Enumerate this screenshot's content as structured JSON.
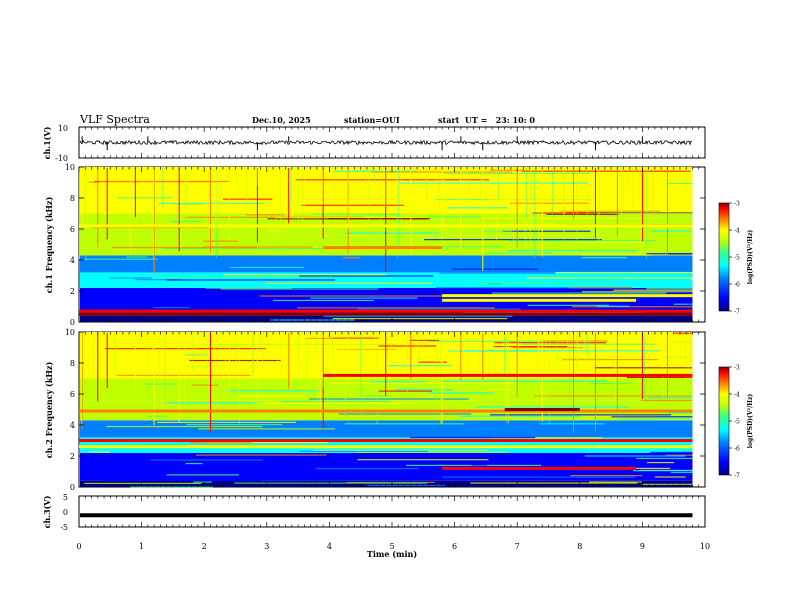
{
  "header": {
    "title": "VLF Spectra",
    "date": "Dec.10, 2025",
    "station": "station=OUI",
    "start": "start  UT =   23: 10: 0"
  },
  "colors": {
    "colormap": [
      "#000080",
      "#0000ff",
      "#0080ff",
      "#00ffff",
      "#40ff80",
      "#c0ff00",
      "#ffff00",
      "#ff8000",
      "#ff0000",
      "#800000"
    ],
    "trace": "#000000"
  },
  "chart_data": [
    {
      "type": "line",
      "name": "ch1-waveform",
      "ylabel": "ch.1(V)",
      "ylim": [
        -10,
        10
      ],
      "yticks": [
        "10",
        "-10"
      ],
      "x_range_min": [
        0,
        10
      ],
      "baseline": 0,
      "amplitude_approx": 1.2,
      "spikes_min": [
        0.05,
        0.45,
        1.1,
        2.85,
        3.35,
        5.8,
        6.1,
        6.45,
        7.0,
        8.25,
        9.0
      ]
    },
    {
      "type": "heatmap",
      "name": "ch1-spectrogram",
      "ylabel": "ch.1 Frequency (kHz)",
      "ylim": [
        0,
        10
      ],
      "yticks": [
        "0",
        "2",
        "4",
        "6",
        "8",
        "10"
      ],
      "x_range_min": [
        0,
        9.8
      ],
      "colorbar": {
        "label": "log(PSD)(V²/Hz)",
        "range": [
          -7,
          -3
        ],
        "ticks": [
          "-3",
          "-4",
          "-5",
          "-6",
          "-7"
        ]
      },
      "bands_khz": [
        {
          "f": 0.5,
          "level": -3.2,
          "t": [
            0,
            9.8
          ]
        },
        {
          "f": 0.7,
          "level": -3.8,
          "t": [
            0,
            9.8
          ]
        },
        {
          "f": 1.4,
          "level": -4.3,
          "t": [
            5.8,
            8.9
          ]
        },
        {
          "f": 1.7,
          "level": -4.4,
          "t": [
            5.8,
            9.8
          ]
        },
        {
          "f": 4.8,
          "level": -4.0,
          "t": [
            3.9,
            5.8
          ]
        },
        {
          "f": 6.2,
          "level": -4.5,
          "t": [
            0,
            9.8
          ]
        }
      ],
      "sferic_times_min": [
        0.05,
        0.3,
        0.45,
        0.9,
        1.2,
        1.6,
        2.1,
        2.4,
        2.85,
        3.35,
        3.9,
        4.3,
        4.9,
        5.3,
        5.8,
        6.1,
        6.45,
        7.0,
        7.4,
        7.9,
        8.25,
        8.6,
        9.0,
        9.4
      ]
    },
    {
      "type": "heatmap",
      "name": "ch2-spectrogram",
      "ylabel": "ch.2 Frequency (kHz)",
      "ylim": [
        0,
        10
      ],
      "yticks": [
        "0",
        "2",
        "4",
        "6",
        "8",
        "10"
      ],
      "x_range_min": [
        0,
        9.8
      ],
      "colorbar": {
        "label": "log(PSD)(V²/Hz)",
        "range": [
          -7,
          -3
        ],
        "ticks": [
          "-3",
          "-4",
          "-5",
          "-6",
          "-7"
        ]
      },
      "bands_khz": [
        {
          "f": 1.2,
          "level": -3.5,
          "t": [
            5.8,
            8.9
          ]
        },
        {
          "f": 2.6,
          "level": -4.5,
          "t": [
            0,
            9.8
          ]
        },
        {
          "f": 3.0,
          "level": -3.5,
          "t": [
            0,
            9.8
          ]
        },
        {
          "f": 4.9,
          "level": -4.2,
          "t": [
            0,
            9.8
          ]
        },
        {
          "f": 5.0,
          "level": -3.4,
          "t": [
            6.8,
            8.0
          ]
        },
        {
          "f": 7.2,
          "level": -3.8,
          "t": [
            3.9,
            9.8
          ]
        }
      ],
      "sferic_times_min": [
        0.05,
        0.3,
        0.45,
        0.9,
        1.2,
        1.6,
        2.1,
        2.4,
        2.85,
        3.35,
        3.9,
        4.3,
        4.9,
        5.3,
        5.8,
        6.1,
        6.45,
        7.0,
        7.4,
        7.9,
        8.25,
        8.6,
        9.0,
        9.4
      ]
    },
    {
      "type": "line",
      "name": "ch3-waveform",
      "ylabel": "ch.3(V)",
      "ylim": [
        -5,
        5
      ],
      "yticks": [
        "5",
        "0",
        "-5"
      ],
      "x_range_min": [
        0,
        9.8
      ],
      "baseline": 0,
      "amplitude_approx": 0.25
    }
  ],
  "xaxis": {
    "label": "Time (min)",
    "range": [
      0,
      10
    ],
    "ticks": [
      "0",
      "1",
      "2",
      "3",
      "4",
      "5",
      "6",
      "7",
      "8",
      "9",
      "10"
    ]
  }
}
